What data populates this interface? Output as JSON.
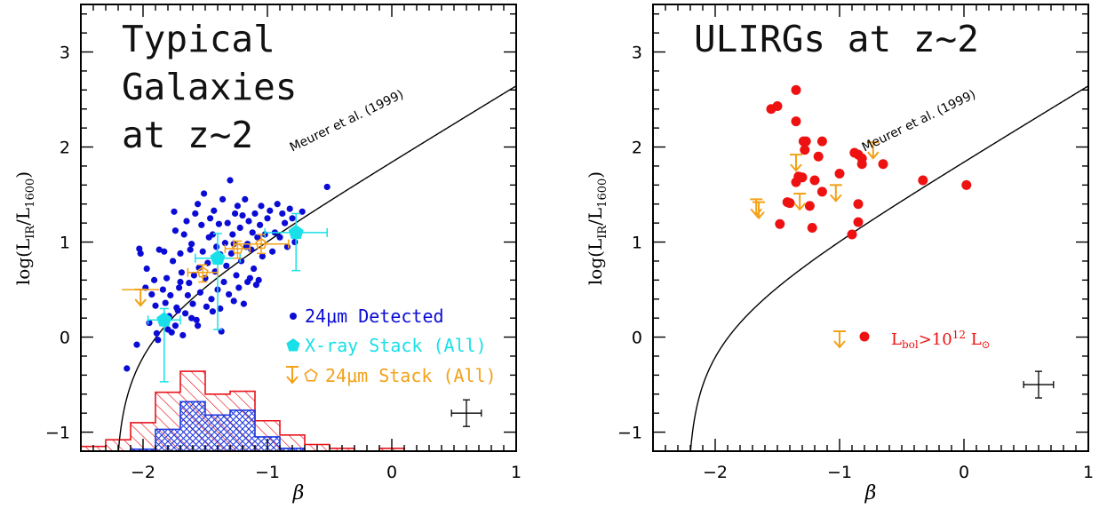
{
  "chart_data": [
    {
      "type": "scatter",
      "title": "Typical Galaxies at z~2",
      "title_lines": [
        "Typical",
        "Galaxies",
        "at z~2"
      ],
      "xlabel": "β",
      "ylabel_main": "log(L",
      "ylabel_sub1": "IR",
      "ylabel_mid": "/L",
      "ylabel_sub2": "1600",
      "ylabel_end": ")",
      "xlim": [
        -2.5,
        1.0
      ],
      "ylim": [
        -1.2,
        3.5
      ],
      "xticks": [
        -2,
        -1,
        0,
        1
      ],
      "xtick_labels": [
        "−2",
        "−1",
        "0",
        "1"
      ],
      "yticks": [
        -1,
        0,
        1,
        2,
        3
      ],
      "ytick_labels": [
        "−1",
        "0",
        "1",
        "2",
        "3"
      ],
      "curve_label": "Meurer et al. (1999)",
      "colors": {
        "detected": "#0b0bd6",
        "xray": "#19e0e8",
        "stack": "#f2a118",
        "hist_red": "#e8141c",
        "hist_blue": "#1f3adf"
      },
      "legend": [
        {
          "label": "24μm Detected",
          "color": "#0b0bd6"
        },
        {
          "label": "X-ray Stack (All)",
          "color": "#19e0e8"
        },
        {
          "label": "24μm Stack (All)",
          "color": "#f2a118"
        }
      ],
      "series": [
        {
          "marker": "dot",
          "points": [
            [
              -2.13,
              -0.33
            ],
            [
              -2.05,
              -0.08
            ],
            [
              -2.03,
              0.93
            ],
            [
              -2.02,
              0.88
            ],
            [
              -1.97,
              0.72
            ],
            [
              -1.93,
              0.45
            ],
            [
              -1.91,
              0.6
            ],
            [
              -1.9,
              0.33
            ],
            [
              -1.89,
              0.04
            ],
            [
              -1.88,
              -0.03
            ],
            [
              -1.87,
              0.92
            ],
            [
              -1.85,
              0.15
            ],
            [
              -1.84,
              0.5
            ],
            [
              -1.82,
              0.36
            ],
            [
              -1.81,
              0.62
            ],
            [
              -1.8,
              0.08
            ],
            [
              -1.79,
              0.22
            ],
            [
              -1.78,
              0.44
            ],
            [
              -1.77,
              0.05
            ],
            [
              -1.76,
              0.8
            ],
            [
              -1.75,
              1.32
            ],
            [
              -1.74,
              0.12
            ],
            [
              -1.73,
              0.31
            ],
            [
              -1.72,
              0.28
            ],
            [
              -1.71,
              0.52
            ],
            [
              -1.7,
              0.58
            ],
            [
              -1.69,
              0.68
            ],
            [
              -1.68,
              0.02
            ],
            [
              -1.67,
              1.08
            ],
            [
              -1.66,
              0.25
            ],
            [
              -1.65,
              1.22
            ],
            [
              -1.64,
              0.44
            ],
            [
              -1.63,
              0.57
            ],
            [
              -1.62,
              0.92
            ],
            [
              -1.61,
              0.2
            ],
            [
              -1.6,
              0.35
            ],
            [
              -1.59,
              0.65
            ],
            [
              -1.58,
              1.3
            ],
            [
              -1.57,
              0.18
            ],
            [
              -1.56,
              1.4
            ],
            [
              -1.55,
              0.73
            ],
            [
              -1.54,
              0.47
            ],
            [
              -1.53,
              1.18
            ],
            [
              -1.52,
              0.9
            ],
            [
              -1.51,
              1.51
            ],
            [
              -1.5,
              0.62
            ],
            [
              -1.49,
              0.32
            ],
            [
              -1.48,
              0.78
            ],
            [
              -1.47,
              1.05
            ],
            [
              -1.46,
              1.25
            ],
            [
              -1.45,
              0.4
            ],
            [
              -1.44,
              0.27
            ],
            [
              -1.43,
              1.33
            ],
            [
              -1.42,
              0.69
            ],
            [
              -1.41,
              0.95
            ],
            [
              -1.4,
              0.5
            ],
            [
              -1.39,
              1.19
            ],
            [
              -1.38,
              0.87
            ],
            [
              -1.37,
              0.06
            ],
            [
              -1.36,
              1.45
            ],
            [
              -1.35,
              0.58
            ],
            [
              -1.34,
              0.99
            ],
            [
              -1.33,
              0.75
            ],
            [
              -1.32,
              1.2
            ],
            [
              -1.31,
              0.45
            ],
            [
              -1.3,
              1.65
            ],
            [
              -1.29,
              0.88
            ],
            [
              -1.28,
              1.08
            ],
            [
              -1.27,
              0.38
            ],
            [
              -1.26,
              1.3
            ],
            [
              -1.25,
              0.65
            ],
            [
              -1.24,
              1.38
            ],
            [
              -1.23,
              0.52
            ],
            [
              -1.22,
              1.15
            ],
            [
              -1.21,
              0.8
            ],
            [
              -1.2,
              1.28
            ],
            [
              -1.19,
              0.35
            ],
            [
              -1.18,
              1.45
            ],
            [
              -1.17,
              0.95
            ],
            [
              -1.16,
              0.58
            ],
            [
              -1.15,
              1.22
            ],
            [
              -1.14,
              0.62
            ],
            [
              -1.13,
              0.92
            ],
            [
              -1.12,
              1.1
            ],
            [
              -1.11,
              0.72
            ],
            [
              -1.1,
              1.3
            ],
            [
              -1.09,
              0.55
            ],
            [
              -1.08,
              1.05
            ],
            [
              -1.07,
              0.6
            ],
            [
              -1.06,
              1.18
            ],
            [
              -1.05,
              1.38
            ],
            [
              -1.04,
              0.85
            ],
            [
              -1.02,
              1.08
            ],
            [
              -1.0,
              1.25
            ],
            [
              -0.98,
              1.33
            ],
            [
              -0.96,
              0.9
            ],
            [
              -0.94,
              1.1
            ],
            [
              -0.92,
              1.4
            ],
            [
              -0.9,
              1.05
            ],
            [
              -0.88,
              1.3
            ],
            [
              -0.86,
              1.2
            ],
            [
              -0.84,
              0.95
            ],
            [
              -0.82,
              1.35
            ],
            [
              -0.8,
              1.25
            ],
            [
              -0.78,
              1.0
            ],
            [
              -0.72,
              1.32
            ],
            [
              -0.52,
              1.58
            ],
            [
              -1.95,
              0.15
            ],
            [
              -1.98,
              0.52
            ],
            [
              -1.7,
              0.88
            ],
            [
              -1.56,
              0.12
            ],
            [
              -1.44,
              1.08
            ],
            [
              -1.38,
              0.3
            ],
            [
              -1.27,
              0.98
            ],
            [
              -1.16,
              0.98
            ],
            [
              -1.61,
              0.98
            ],
            [
              -1.83,
              0.9
            ],
            [
              -1.74,
              1.12
            ]
          ]
        },
        {
          "marker": "pentagon-filled",
          "points": [
            [
              -1.83,
              0.18,
              0.13,
              0.12,
              0.65
            ],
            [
              -1.4,
              0.83,
              0.18,
              0.26,
              0.75
            ],
            [
              -0.77,
              1.1,
              0.25,
              0.2,
              0.4
            ]
          ]
        },
        {
          "marker": "pentagon-open",
          "points": [
            [
              -1.52,
              0.68,
              0.12,
              0.08,
              0.1
            ],
            [
              -1.24,
              0.93,
              0.1,
              0.08,
              0.1
            ],
            [
              -1.05,
              0.98,
              0.22,
              0.1,
              0.1
            ]
          ]
        },
        {
          "marker": "upper-limit",
          "points": [
            [
              -2.02,
              0.5,
              0.15
            ]
          ]
        }
      ],
      "histogram": {
        "bin_edges": [
          -2.5,
          -2.3,
          -2.1,
          -1.9,
          -1.7,
          -1.5,
          -1.3,
          -1.1,
          -0.9,
          -0.7,
          -0.5,
          -0.3,
          -0.1,
          0.1
        ],
        "red": [
          -1.15,
          -1.08,
          -0.9,
          -0.58,
          -0.36,
          -0.6,
          -0.57,
          -0.88,
          -1.03,
          -1.13,
          -1.17,
          -1.2,
          -1.17
        ],
        "blue": [
          -1.2,
          -1.2,
          -1.18,
          -0.97,
          -0.68,
          -0.82,
          -0.77,
          -1.05,
          -1.17,
          -1.2,
          -1.2,
          -1.2,
          -1.2
        ]
      },
      "error_bar_example": [
        0.6,
        -0.8,
        0.12,
        0.14
      ]
    },
    {
      "type": "scatter",
      "title": "ULIRGs at z~2",
      "title_lines": [
        "ULIRGs at z~2"
      ],
      "xlabel": "β",
      "ylabel_main": "log(L",
      "ylabel_sub1": "IR",
      "ylabel_mid": "/L",
      "ylabel_sub2": "1600",
      "ylabel_end": ")",
      "xlim": [
        -2.5,
        1.0
      ],
      "ylim": [
        -1.2,
        3.5
      ],
      "xticks": [
        -2,
        -1,
        0,
        1
      ],
      "xtick_labels": [
        "−2",
        "−1",
        "0",
        "1"
      ],
      "yticks": [
        -1,
        0,
        1,
        2,
        3
      ],
      "ytick_labels": [
        "−1",
        "0",
        "1",
        "2",
        "3"
      ],
      "curve_label": "Meurer et al. (1999)",
      "colors": {
        "ulirg": "#ee1111",
        "limit": "#f2a118"
      },
      "legend": [
        {
          "label_main": "L",
          "label_sub": "bol",
          "label_mid": ">10",
          "label_sup": "12",
          "label_end": " L",
          "label_sun_sub": "⊙",
          "color": "#ee1111"
        }
      ],
      "series": [
        {
          "marker": "dot-large",
          "points": [
            [
              -1.55,
              2.4
            ],
            [
              -1.5,
              2.43
            ],
            [
              -1.35,
              2.6
            ],
            [
              -1.35,
              2.27
            ],
            [
              -1.29,
              2.06
            ],
            [
              -1.27,
              2.06
            ],
            [
              -1.14,
              2.06
            ],
            [
              -1.28,
              1.97
            ],
            [
              -1.17,
              1.9
            ],
            [
              -1.0,
              1.72
            ],
            [
              -1.33,
              1.69
            ],
            [
              -1.3,
              1.68
            ],
            [
              -1.35,
              1.63
            ],
            [
              -1.2,
              1.65
            ],
            [
              -1.14,
              1.53
            ],
            [
              -1.24,
              1.38
            ],
            [
              -1.42,
              1.42
            ],
            [
              -1.4,
              1.41
            ],
            [
              -1.48,
              1.19
            ],
            [
              -1.22,
              1.15
            ],
            [
              -0.88,
              1.94
            ],
            [
              -0.85,
              1.92
            ],
            [
              -0.82,
              1.88
            ],
            [
              -0.82,
              1.82
            ],
            [
              -0.65,
              1.82
            ],
            [
              -0.85,
              1.4
            ],
            [
              -0.85,
              1.21
            ],
            [
              -0.9,
              1.08
            ],
            [
              -0.33,
              1.65
            ],
            [
              0.02,
              1.6
            ]
          ]
        },
        {
          "marker": "upper-limit",
          "points": [
            [
              -1.35,
              1.92,
              0
            ],
            [
              -1.32,
              1.51,
              0
            ],
            [
              -1.03,
              1.6,
              0
            ],
            [
              -0.73,
              2.05,
              0
            ],
            [
              -1.67,
              1.45,
              0
            ],
            [
              -1.65,
              1.42,
              0
            ]
          ]
        }
      ],
      "error_bar_example": [
        0.6,
        -0.5,
        0.12,
        0.14
      ]
    }
  ]
}
